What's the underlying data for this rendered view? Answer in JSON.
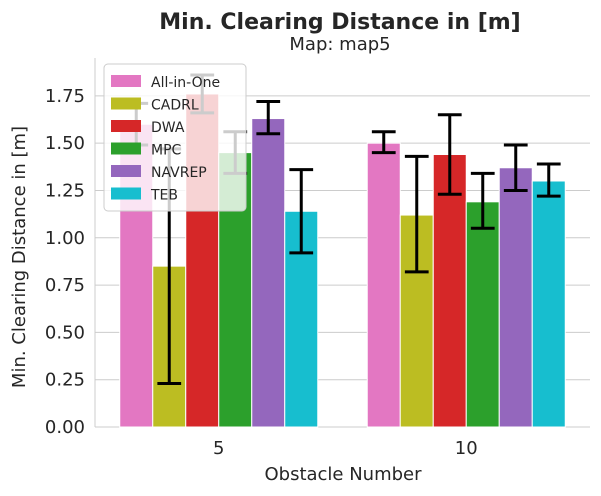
{
  "chart_data": {
    "type": "bar",
    "title": "Min. Clearing Distance in [m]",
    "subtitle": "Map: map5",
    "xlabel": "Obstacle Number",
    "ylabel": "Min. Clearing Distance in [m]",
    "categories": [
      "5",
      "10"
    ],
    "ylim": [
      0,
      1.95
    ],
    "yticks": [
      0.0,
      0.25,
      0.5,
      0.75,
      1.0,
      1.25,
      1.5,
      1.75
    ],
    "ytick_labels": [
      "0.00",
      "0.25",
      "0.50",
      "0.75",
      "1.00",
      "1.25",
      "1.50",
      "1.75"
    ],
    "grid": true,
    "legend_position": "top-left",
    "series": [
      {
        "name": "All-in-One",
        "color": "#e377c2",
        "values": [
          1.6,
          1.5
        ],
        "err_low": [
          1.49,
          1.45
        ],
        "err_high": [
          1.71,
          1.56
        ]
      },
      {
        "name": "CADRL",
        "color": "#bcbd22",
        "values": [
          0.85,
          1.12
        ],
        "err_low": [
          0.23,
          0.82
        ],
        "err_high": [
          1.47,
          1.43
        ]
      },
      {
        "name": "DWA",
        "color": "#d62728",
        "values": [
          1.76,
          1.44
        ],
        "err_low": [
          1.66,
          1.23
        ],
        "err_high": [
          1.86,
          1.65
        ]
      },
      {
        "name": "MPC",
        "color": "#2ca02c",
        "values": [
          1.45,
          1.19
        ],
        "err_low": [
          1.34,
          1.05
        ],
        "err_high": [
          1.56,
          1.34
        ]
      },
      {
        "name": "NAVREP",
        "color": "#9467bd",
        "values": [
          1.63,
          1.37
        ],
        "err_low": [
          1.55,
          1.25
        ],
        "err_high": [
          1.72,
          1.49
        ]
      },
      {
        "name": "TEB",
        "color": "#17becf",
        "values": [
          1.14,
          1.3
        ],
        "err_low": [
          0.92,
          1.22
        ],
        "err_high": [
          1.36,
          1.39
        ]
      }
    ]
  }
}
